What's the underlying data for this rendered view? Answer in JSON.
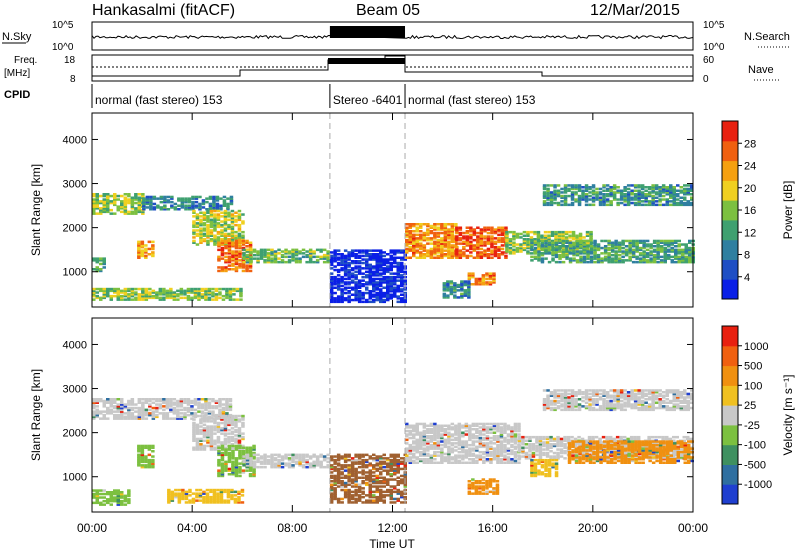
{
  "header": {
    "station": "Hankasalmi (fitACF)",
    "beam": "Beam 05",
    "date": "12/Mar/2015"
  },
  "panels": {
    "nsky_label": "N.Sky",
    "nsky_top_tick": "10^5",
    "nsky_bottom_tick": "10^0",
    "nsearch_label": "N.Search",
    "nsearch_top_tick": "10^5",
    "nsearch_bottom_tick": "10^0",
    "freq_label_1": "Freq.",
    "freq_label_2": "[MHz]",
    "freq_top_tick": "18",
    "freq_bottom_tick": "8",
    "nave_label": "Nave",
    "nave_top_tick": "60",
    "nave_bottom_tick": "0",
    "cpid_label": "CPID",
    "cpid_segments": [
      {
        "start_h": 0,
        "end_h": 9.5,
        "text": "normal (fast stereo) 153"
      },
      {
        "start_h": 9.5,
        "end_h": 12.5,
        "text": "Stereo -6401"
      },
      {
        "start_h": 12.5,
        "end_h": 24,
        "text": "normal (fast stereo) 153"
      }
    ]
  },
  "chart_data": [
    {
      "type": "heatmap",
      "name": "power",
      "ylabel": "Slant Range [km]",
      "ylim": [
        200,
        4600
      ],
      "yticks": [
        "1000",
        "2000",
        "3000",
        "4000"
      ],
      "colorbar": {
        "label": "Power [dB]",
        "ticks": [
          "4",
          "8",
          "12",
          "16",
          "20",
          "24",
          "28"
        ],
        "colors": [
          "#0a1fe6",
          "#1f4fc4",
          "#2f7fa0",
          "#3fa070",
          "#7cc040",
          "#f0d020",
          "#f5a010",
          "#f06010",
          "#e82010"
        ]
      },
      "regions": [
        {
          "h0": 0.0,
          "h1": 2.0,
          "r0": 2300,
          "r1": 2750,
          "level": 0.5
        },
        {
          "h0": 2.0,
          "h1": 5.5,
          "r0": 2400,
          "r1": 2700,
          "level": 0.3
        },
        {
          "h0": 4.0,
          "h1": 6.0,
          "r0": 1600,
          "r1": 2400,
          "level": 0.55
        },
        {
          "h0": 5.0,
          "h1": 6.3,
          "r0": 1000,
          "r1": 1700,
          "level": 0.8
        },
        {
          "h0": 6.0,
          "h1": 9.5,
          "r0": 1200,
          "r1": 1500,
          "level": 0.45
        },
        {
          "h0": 1.8,
          "h1": 2.5,
          "r0": 1300,
          "r1": 1700,
          "level": 0.7
        },
        {
          "h0": 0.0,
          "h1": 0.5,
          "r0": 1000,
          "r1": 1300,
          "level": 0.4
        },
        {
          "h0": 0.0,
          "h1": 6.0,
          "r0": 350,
          "r1": 600,
          "level": 0.5
        },
        {
          "h0": 9.5,
          "h1": 12.5,
          "r0": 300,
          "r1": 1500,
          "level": 0.05
        },
        {
          "h0": 12.5,
          "h1": 14.5,
          "r0": 1300,
          "r1": 2100,
          "level": 0.75
        },
        {
          "h0": 14.5,
          "h1": 16.5,
          "r0": 1300,
          "r1": 2000,
          "level": 0.85
        },
        {
          "h0": 16.5,
          "h1": 20.0,
          "r0": 1400,
          "r1": 1900,
          "level": 0.5
        },
        {
          "h0": 17.5,
          "h1": 24.0,
          "r0": 1200,
          "r1": 1700,
          "level": 0.4
        },
        {
          "h0": 18.0,
          "h1": 24.0,
          "r0": 2500,
          "r1": 2950,
          "level": 0.35
        },
        {
          "h0": 15.0,
          "h1": 16.0,
          "r0": 700,
          "r1": 950,
          "level": 0.75
        },
        {
          "h0": 14.0,
          "h1": 15.0,
          "r0": 400,
          "r1": 800,
          "level": 0.3
        }
      ]
    },
    {
      "type": "heatmap",
      "name": "velocity",
      "ylabel": "Slant Range [km]",
      "ylim": [
        200,
        4600
      ],
      "yticks": [
        "1000",
        "2000",
        "3000",
        "4000"
      ],
      "colorbar": {
        "label": "Velocity [m s⁻¹]",
        "ticks": [
          "1000",
          "500",
          "100",
          "25",
          "-25",
          "-100",
          "-500",
          "-1000"
        ],
        "colors": [
          "#1f3fd0",
          "#2f6fa0",
          "#3f9060",
          "#7cc040",
          "#c8c8c8",
          "#f0c020",
          "#f09010",
          "#f06010",
          "#e82010"
        ]
      },
      "regions": [
        {
          "h0": 0.0,
          "h1": 5.5,
          "r0": 2300,
          "r1": 2750,
          "color": "#c8c8c8"
        },
        {
          "h0": 4.0,
          "h1": 6.0,
          "r0": 1600,
          "r1": 2400,
          "color": "#c8c8c8"
        },
        {
          "h0": 5.0,
          "h1": 6.5,
          "r0": 1000,
          "r1": 1700,
          "color": "#7cc040"
        },
        {
          "h0": 6.0,
          "h1": 9.5,
          "r0": 1200,
          "r1": 1500,
          "color": "#c8c8c8"
        },
        {
          "h0": 1.8,
          "h1": 2.4,
          "r0": 1200,
          "r1": 1700,
          "color": "#7cc040"
        },
        {
          "h0": 0.0,
          "h1": 1.5,
          "r0": 350,
          "r1": 700,
          "color": "#7cc040"
        },
        {
          "h0": 3.0,
          "h1": 6.0,
          "r0": 400,
          "r1": 700,
          "color": "#f0c020"
        },
        {
          "h0": 9.5,
          "h1": 12.5,
          "r0": 400,
          "r1": 1500,
          "color": "#a06030"
        },
        {
          "h0": 12.5,
          "h1": 17.0,
          "r0": 1300,
          "r1": 2200,
          "color": "#c8c8c8"
        },
        {
          "h0": 17.0,
          "h1": 24.0,
          "r0": 1400,
          "r1": 1900,
          "color": "#c8c8c8"
        },
        {
          "h0": 19.0,
          "h1": 24.0,
          "r0": 1300,
          "r1": 1800,
          "color": "#f09010"
        },
        {
          "h0": 18.0,
          "h1": 24.0,
          "r0": 2500,
          "r1": 2950,
          "color": "#c8c8c8"
        },
        {
          "h0": 15.0,
          "h1": 16.2,
          "r0": 600,
          "r1": 950,
          "color": "#f09010"
        },
        {
          "h0": 17.5,
          "h1": 18.5,
          "r0": 1000,
          "r1": 1400,
          "color": "#f0c020"
        }
      ]
    }
  ],
  "x_axis": {
    "label": "Time UT",
    "xlim": [
      0,
      24
    ],
    "ticks": [
      "00:00",
      "04:00",
      "08:00",
      "12:00",
      "16:00",
      "20:00",
      "00:00"
    ]
  },
  "mode_boundaries_h": [
    9.5,
    12.5
  ]
}
